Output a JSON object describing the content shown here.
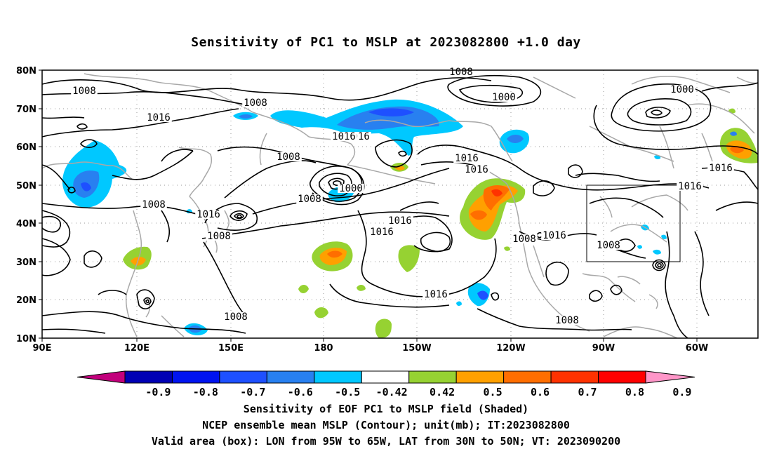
{
  "title": "Sensitivity of PC1 to MSLP at 2023082800 +1.0 day",
  "lat_labels": [
    "80N",
    "70N",
    "60N",
    "50N",
    "40N",
    "30N",
    "20N",
    "10N"
  ],
  "lon_labels": [
    "90E",
    "120E",
    "150E",
    "180",
    "150W",
    "120W",
    "90W",
    "60W"
  ],
  "contour_labels": [
    "1008",
    "1008",
    "1008",
    "1016",
    "1000",
    "1000",
    "1016",
    "1008",
    "1016",
    "1016",
    "1000",
    "1008",
    "1008",
    "1016",
    "1016",
    "1016",
    "1016",
    "1008",
    "1016",
    "1016",
    "1016",
    "1008",
    "1008",
    "1008",
    "1008",
    "1016"
  ],
  "colorbar_ticks": [
    "-0.9",
    "-0.8",
    "-0.7",
    "-0.6",
    "-0.5",
    "-0.42",
    "0.42",
    "0.5",
    "0.6",
    "0.7",
    "0.8",
    "0.9"
  ],
  "colorbar_colors": [
    "#c2007c",
    "#0000b4",
    "#0014f0",
    "#1e50ff",
    "#2880f0",
    "#00c8ff",
    "#ffffff",
    "#96d232",
    "#ffa000",
    "#ff6e00",
    "#ff3200",
    "#ff0000",
    "#ff96c8"
  ],
  "caption": {
    "line1": "Sensitivity of EOF PC1 to MSLP field (Shaded)",
    "line2": "NCEP ensemble mean MSLP (Contour); unit(mb); IT:2023082800",
    "line3": "Valid area (box): LON from 95W to 65W, LAT from 30N to 50N; VT: 2023090200"
  }
}
